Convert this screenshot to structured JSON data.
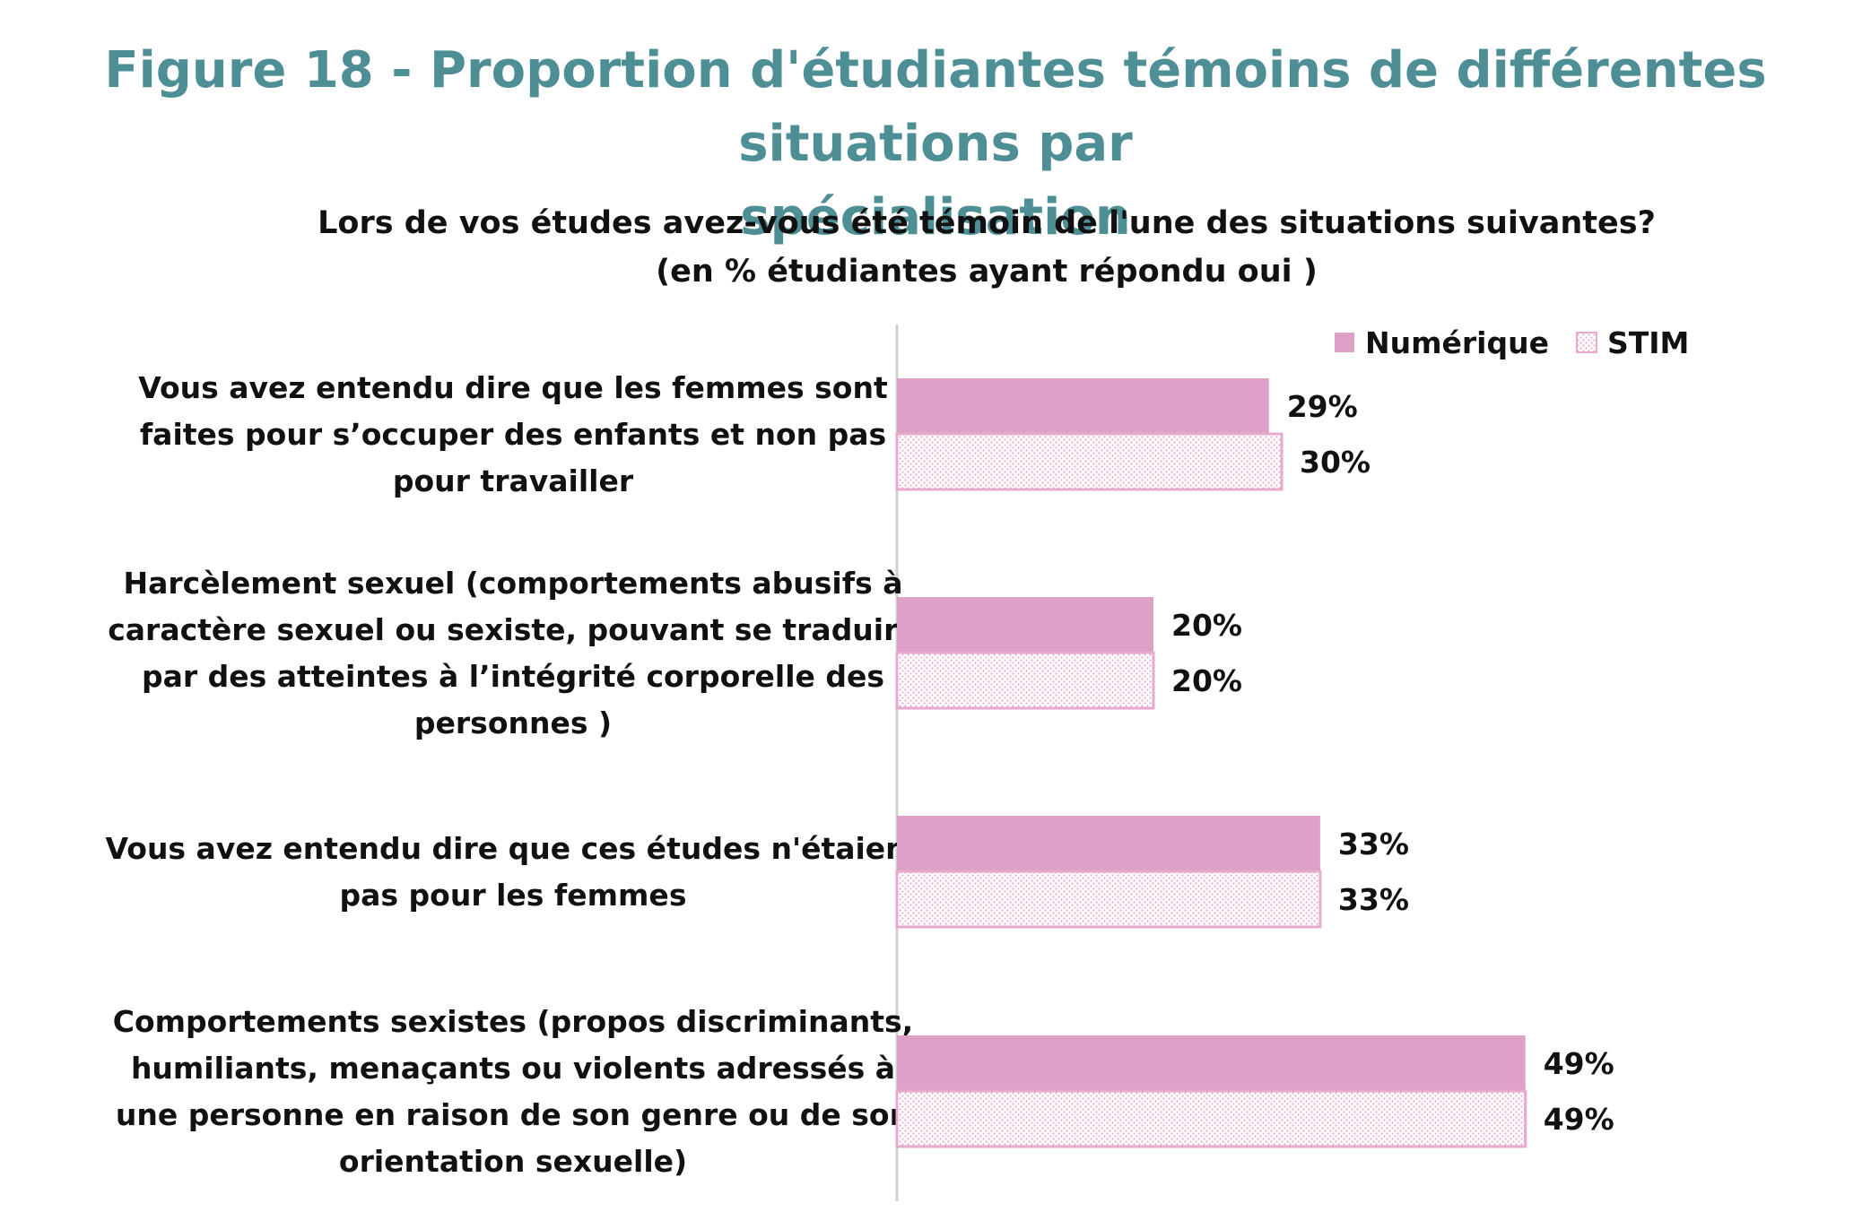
{
  "figure": {
    "title_line1": "Figure 18 - Proportion d'étudiantes témoins de différentes situations par",
    "title_line2": "spécialisation"
  },
  "chart_data": {
    "type": "bar",
    "orientation": "horizontal",
    "title": "Lors de vos études avez-vous été témoin de l'une des situations suivantes?",
    "subtitle": "(en % étudiantes ayant répondu oui )",
    "categories": [
      [
        "Vous avez entendu dire que les femmes sont",
        "faites pour s’occuper des enfants et non pas",
        "pour travailler"
      ],
      [
        "Harcèlement sexuel (comportements abusifs  à",
        "caractère sexuel ou sexiste, pouvant se traduire",
        "par des atteintes à l’intégrité corporelle des",
        "personnes )"
      ],
      [
        "Vous avez entendu dire que ces études n'étaient",
        "pas pour les femmes"
      ],
      [
        "Comportements sexistes (propos discriminants,",
        "humiliants, menaçants ou violents adressés à",
        "une personne en raison de son genre ou de son",
        "orientation sexuelle)"
      ]
    ],
    "series": [
      {
        "name": "Numérique",
        "values": [
          29,
          20,
          33,
          49
        ],
        "labels": [
          "29%",
          "20%",
          "33%",
          "49%"
        ],
        "color": "#dda0c6",
        "pattern": "solid"
      },
      {
        "name": "STIM",
        "values": [
          30,
          20,
          33,
          49
        ],
        "labels": [
          "30%",
          "20%",
          "33%",
          "49%"
        ],
        "color": "#e7a9cc",
        "pattern": "dotted"
      }
    ],
    "xlim": [
      0,
      100
    ],
    "grid": false,
    "legend": "top-right",
    "value_labels": true,
    "axis_color": "#d0d0d0"
  }
}
